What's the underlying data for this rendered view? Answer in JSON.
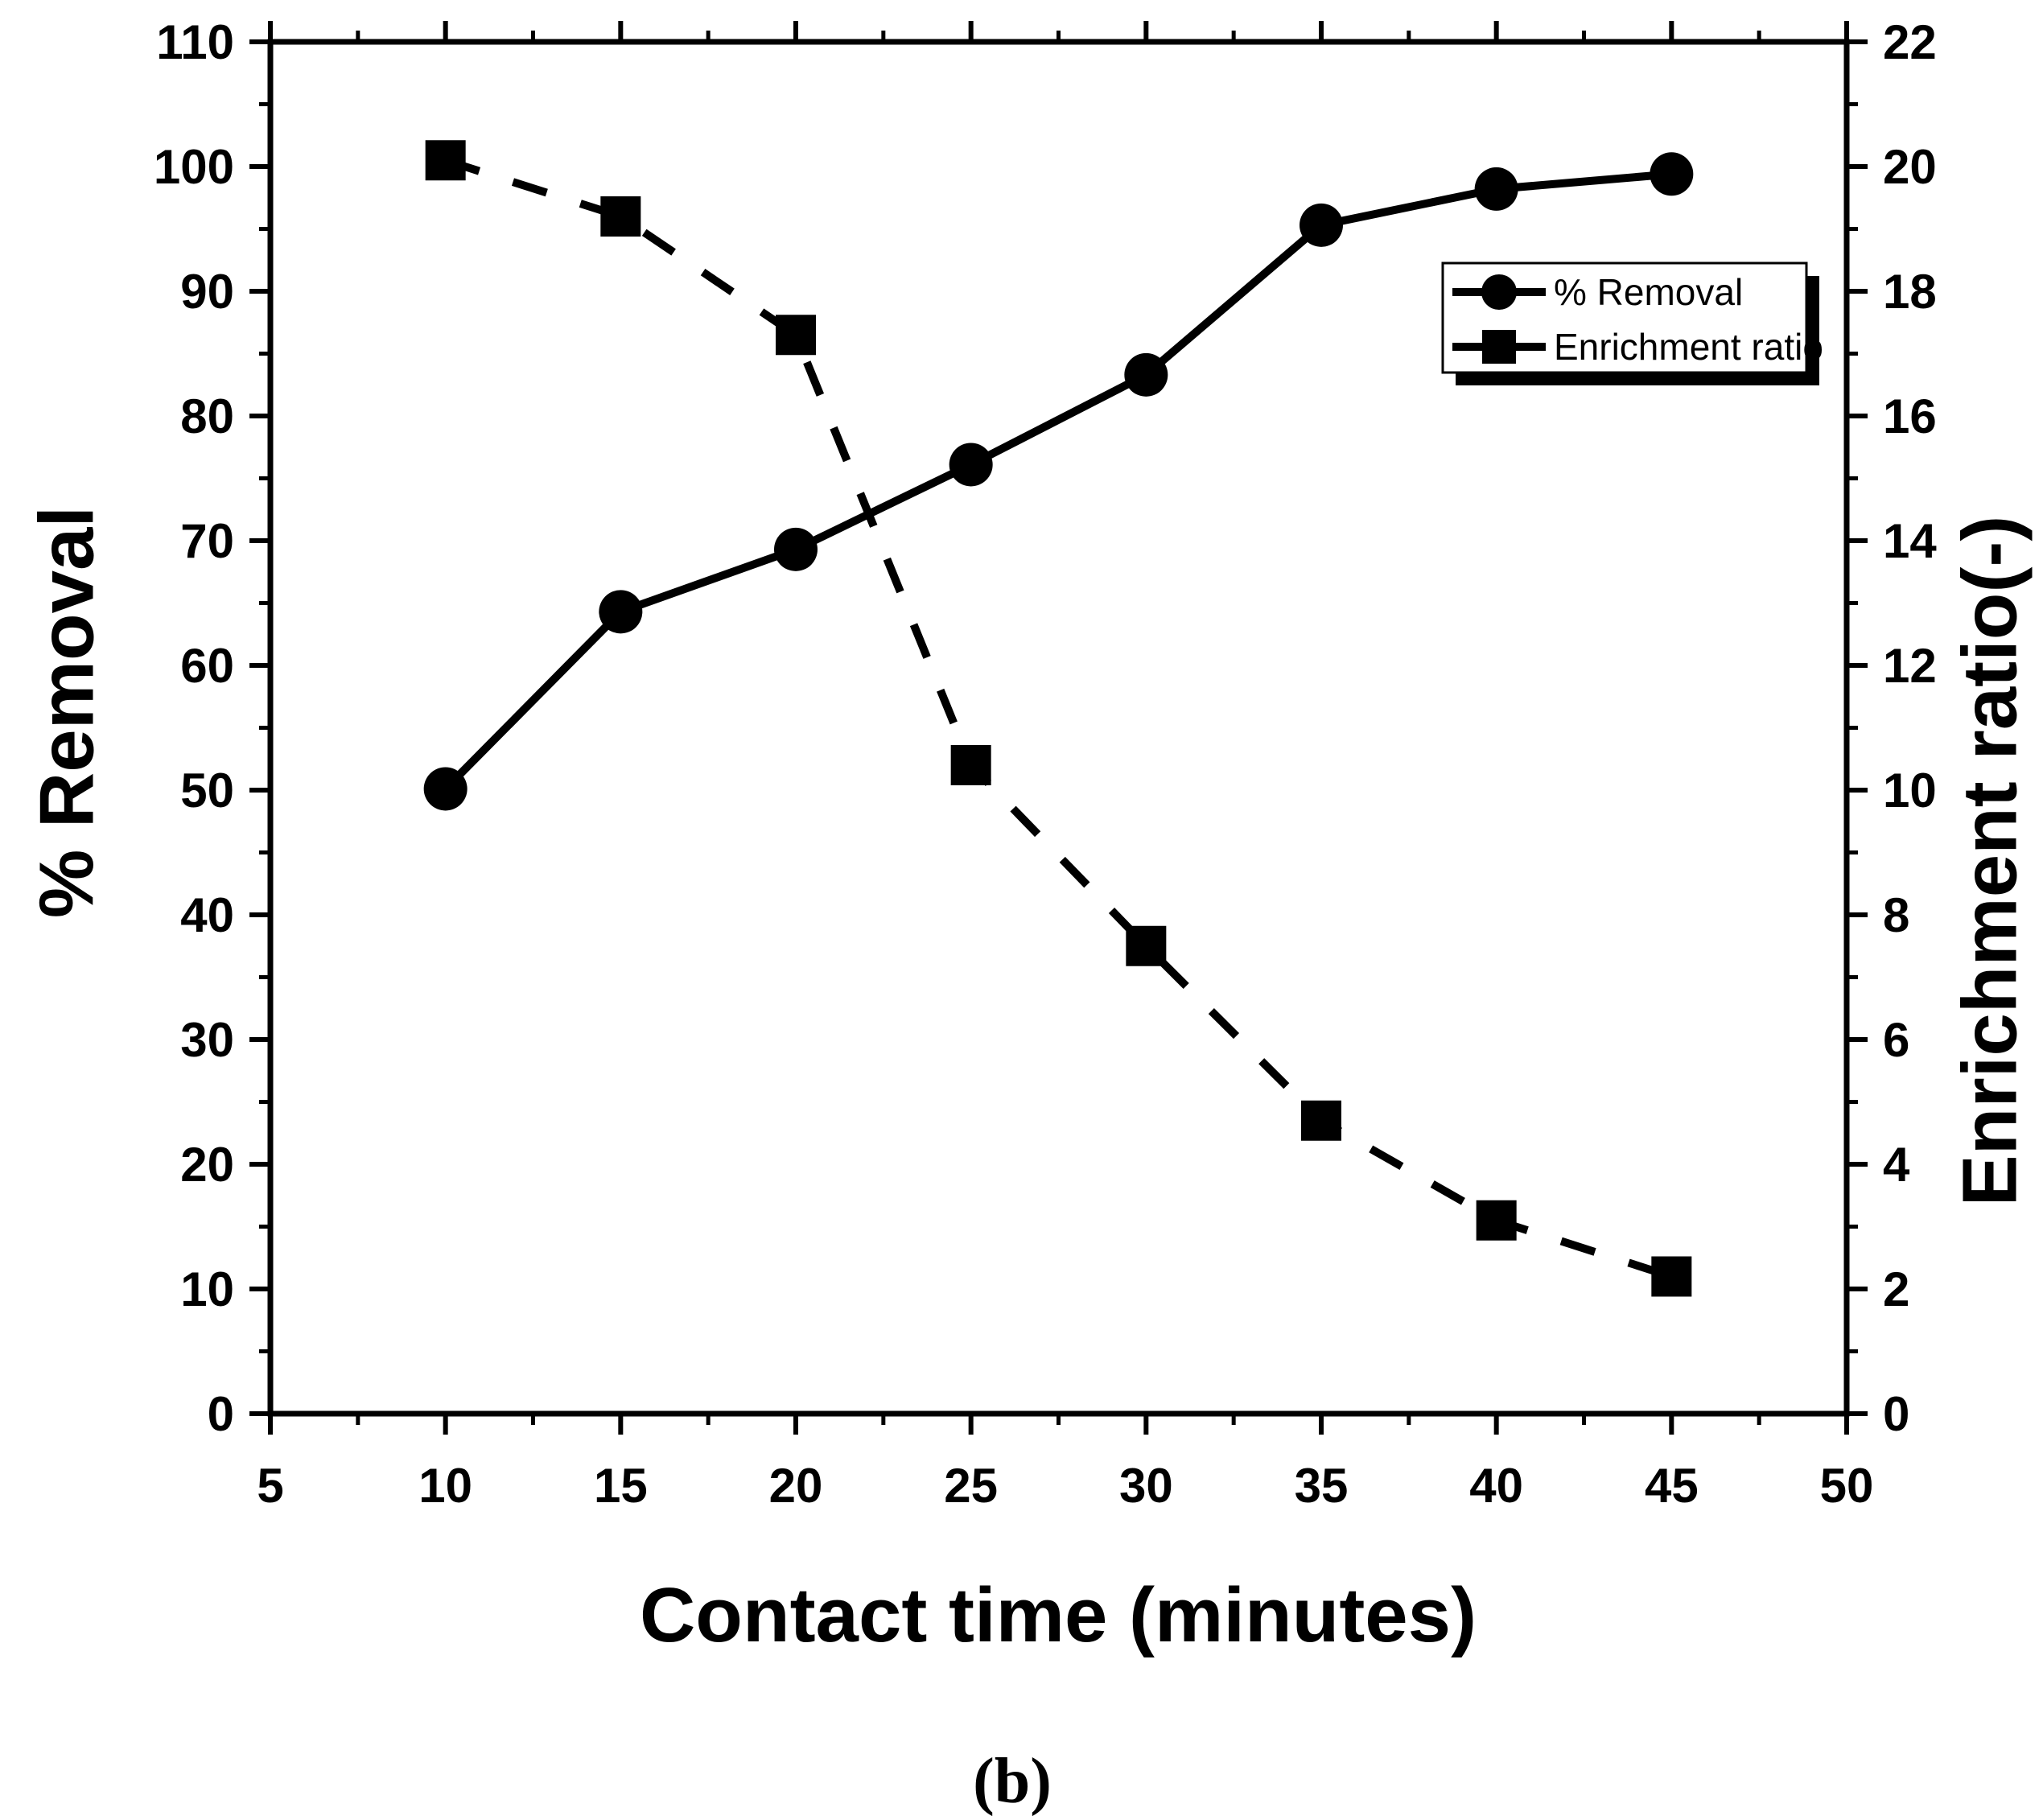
{
  "chart_data": {
    "type": "line",
    "caption": "(b)",
    "xlabel": "Contact time (minutes)",
    "ylabel": "% Removal",
    "y2label": "Enrichment ratio(-)",
    "xlim": [
      5,
      50
    ],
    "ylim": [
      0,
      110
    ],
    "y2lim": [
      0,
      22
    ],
    "xticks": [
      5,
      10,
      15,
      20,
      25,
      30,
      35,
      40,
      45,
      50
    ],
    "yticks": [
      0,
      10,
      20,
      30,
      40,
      50,
      60,
      70,
      80,
      90,
      100,
      110
    ],
    "y2ticks": [
      0,
      2,
      4,
      6,
      8,
      10,
      12,
      14,
      16,
      18,
      20,
      22
    ],
    "grid": false,
    "legend": "top-right",
    "series": [
      {
        "name": "% Removal",
        "axis": "left",
        "marker": "circle",
        "line": "solid",
        "color": "#000000",
        "x": [
          10,
          15,
          20,
          25,
          30,
          35,
          40,
          45
        ],
        "values": [
          50.1,
          64.3,
          69.3,
          76.1,
          83.3,
          95.3,
          98.2,
          99.4
        ]
      },
      {
        "name": "Enrichment ratio",
        "axis": "right",
        "marker": "square",
        "line": "dashed",
        "color": "#000000",
        "x": [
          10,
          15,
          20,
          25,
          30,
          35,
          40,
          45
        ],
        "values": [
          20.1,
          19.2,
          17.3,
          10.4,
          7.5,
          4.7,
          3.1,
          2.2
        ]
      }
    ]
  }
}
